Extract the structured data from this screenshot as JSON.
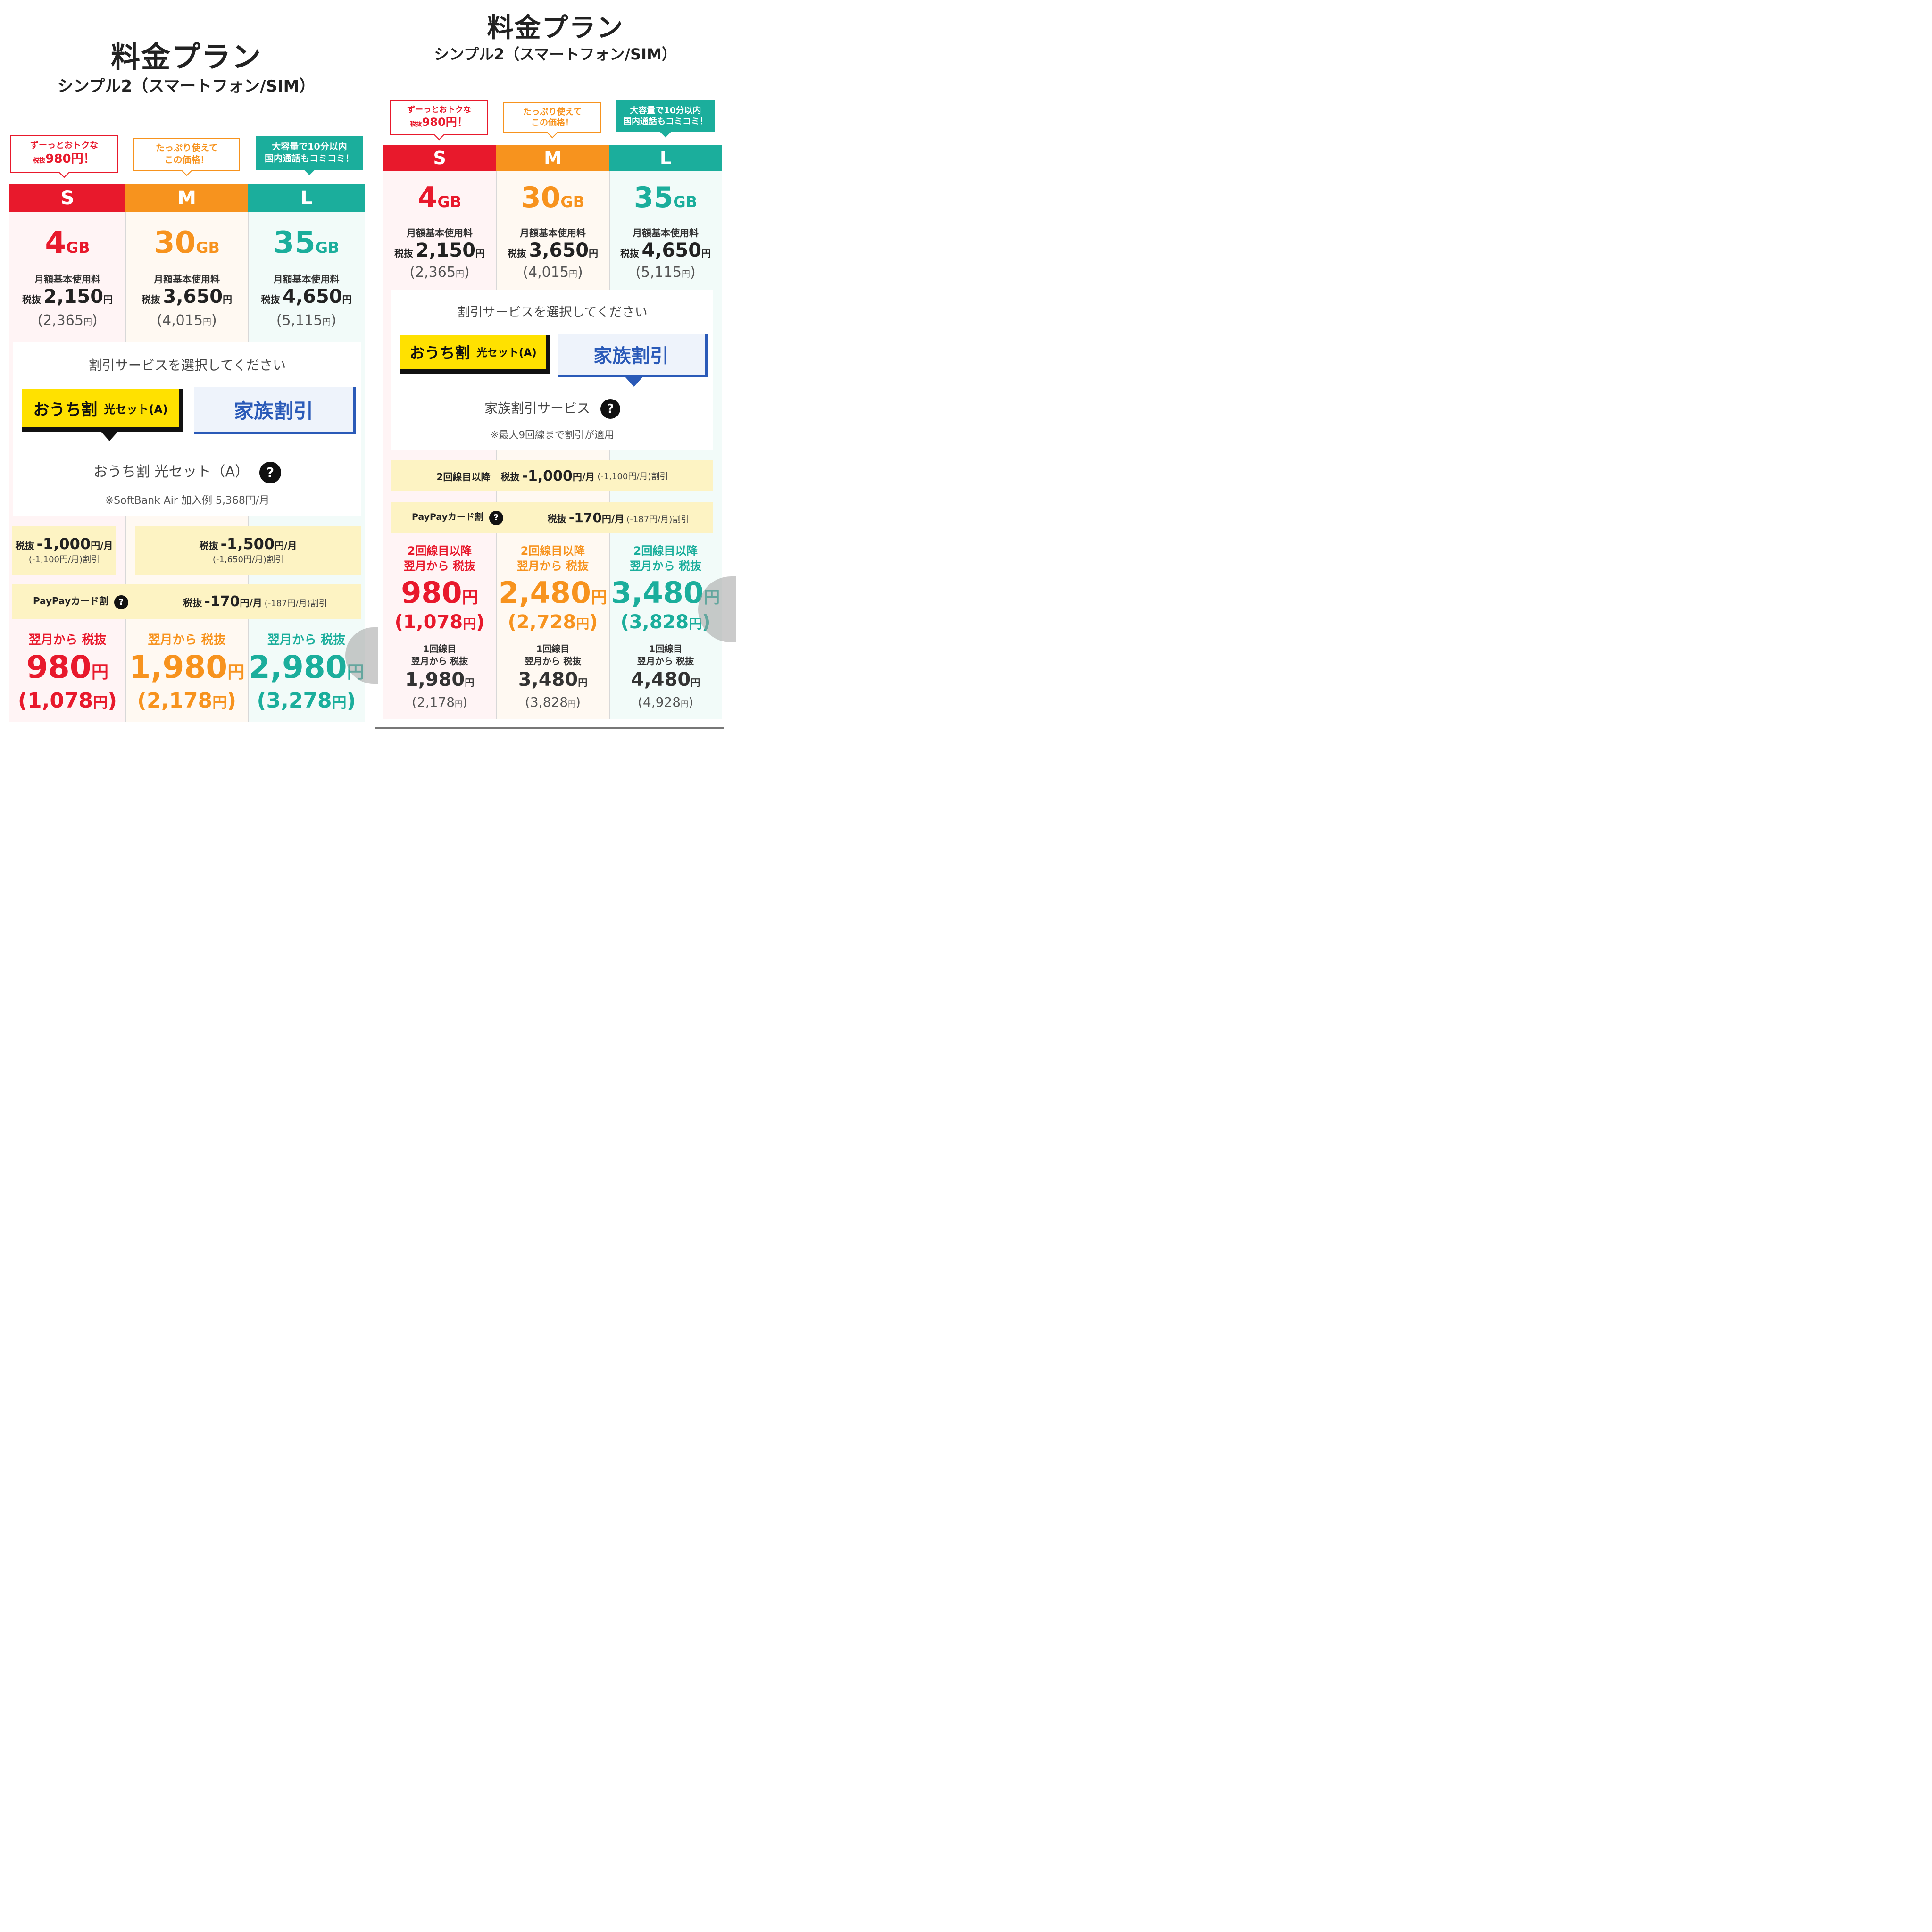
{
  "left": {
    "title": "料金プラン",
    "subtitle": "シンプル2（スマートフォン/SIM）",
    "bubbles": {
      "s": {
        "line1": "ずーっとおトクな",
        "prefix": "税抜",
        "line2": "980円！"
      },
      "m": {
        "line1": "たっぷり使えて",
        "line2": "この価格！"
      },
      "l": {
        "line1": "大容量で10分以内",
        "line2": "国内通話もコミコミ！"
      }
    },
    "plans": [
      {
        "name": "S",
        "gb": "4",
        "gb_unit": "GB",
        "fee_label": "月額基本使用料",
        "tax": "税抜",
        "fee": "2,150",
        "yen": "円",
        "fee_inc": "(2,365",
        "fee_inc_yen": "円",
        "fee_inc_close": ")"
      },
      {
        "name": "M",
        "gb": "30",
        "gb_unit": "GB",
        "fee_label": "月額基本使用料",
        "tax": "税抜",
        "fee": "3,650",
        "yen": "円",
        "fee_inc": "(4,015",
        "fee_inc_yen": "円",
        "fee_inc_close": ")"
      },
      {
        "name": "L",
        "gb": "35",
        "gb_unit": "GB",
        "fee_label": "月額基本使用料",
        "tax": "税抜",
        "fee": "4,650",
        "yen": "円",
        "fee_inc": "(5,115",
        "fee_inc_yen": "円",
        "fee_inc_close": ")"
      }
    ],
    "select_prompt": "割引サービスを選択してください",
    "btn_ouchi": "おうち割",
    "btn_ouchi_small": "光セット(A)",
    "btn_family": "家族割引",
    "service_name": "おうち割 光セット（A）",
    "service_q": "?",
    "service_note": "※SoftBank Air 加入例 5,368円/月",
    "discount_s": {
      "tax": "税抜",
      "amt": "-1,000",
      "unit": "円/月",
      "sub": "(-1,100円/月)割引"
    },
    "discount_ml": {
      "tax": "税抜",
      "amt": "-1,500",
      "unit": "円/月",
      "sub": "(-1,650円/月)割引"
    },
    "paypay": {
      "label": "PayPayカード割",
      "q": "?",
      "tax": "税抜",
      "amt": "-170",
      "unit": "円/月",
      "sub": "(-187円/月)割引"
    },
    "finals": [
      {
        "label": "翌月から 税抜",
        "price": "980",
        "yen": "円",
        "inc": "(1,078",
        "inc_yen": "円",
        "inc_close": ")"
      },
      {
        "label": "翌月から 税抜",
        "price": "1,980",
        "yen": "円",
        "inc": "(2,178",
        "inc_yen": "円",
        "inc_close": ")"
      },
      {
        "label": "翌月から 税抜",
        "price": "2,980",
        "yen": "円",
        "inc": "(3,278",
        "inc_yen": "円",
        "inc_close": ")"
      }
    ]
  },
  "right": {
    "title": "料金プラン",
    "subtitle": "シンプル2（スマートフォン/SIM）",
    "bubbles": {
      "s": {
        "line1": "ずーっとおトクな",
        "prefix": "税抜",
        "line2": "980円！"
      },
      "m": {
        "line1": "たっぷり使えて",
        "line2": "この価格！"
      },
      "l": {
        "line1": "大容量で10分以内",
        "line2": "国内通話もコミコミ！"
      }
    },
    "plans": [
      {
        "name": "S",
        "gb": "4",
        "gb_unit": "GB",
        "fee_label": "月額基本使用料",
        "tax": "税抜",
        "fee": "2,150",
        "yen": "円",
        "fee_inc": "(2,365",
        "fee_inc_yen": "円",
        "fee_inc_close": ")"
      },
      {
        "name": "M",
        "gb": "30",
        "gb_unit": "GB",
        "fee_label": "月額基本使用料",
        "tax": "税抜",
        "fee": "3,650",
        "yen": "円",
        "fee_inc": "(4,015",
        "fee_inc_yen": "円",
        "fee_inc_close": ")"
      },
      {
        "name": "L",
        "gb": "35",
        "gb_unit": "GB",
        "fee_label": "月額基本使用料",
        "tax": "税抜",
        "fee": "4,650",
        "yen": "円",
        "fee_inc": "(5,115",
        "fee_inc_yen": "円",
        "fee_inc_close": ")"
      }
    ],
    "select_prompt": "割引サービスを選択してください",
    "btn_ouchi": "おうち割",
    "btn_ouchi_small": "光セット(A)",
    "btn_family": "家族割引",
    "service_name": "家族割引サービス",
    "service_q": "?",
    "service_note": "※最大9回線まで割引が適用",
    "discount_all": {
      "prefix": "2回線目以降",
      "tax": "税抜",
      "amt": "-1,000",
      "unit": "円/月",
      "sub": "(-1,100円/月)割引"
    },
    "paypay": {
      "label": "PayPayカード割",
      "q": "?",
      "tax": "税抜",
      "amt": "-170",
      "unit": "円/月",
      "sub": "(-187円/月)割引"
    },
    "finals": [
      {
        "label1": "2回線目以降",
        "label2": "翌月から 税抜",
        "price": "980",
        "yen": "円",
        "inc": "(1,078",
        "inc_yen": "円",
        "inc_close": ")",
        "first_l1": "1回線目",
        "first_l2": "翌月から 税抜",
        "first_price": "1,980",
        "first_yen": "円",
        "first_inc": "(2,178",
        "first_inc_yen": "円",
        "first_inc_close": ")"
      },
      {
        "label1": "2回線目以降",
        "label2": "翌月から 税抜",
        "price": "2,480",
        "yen": "円",
        "inc": "(2,728",
        "inc_yen": "円",
        "inc_close": ")",
        "first_l1": "1回線目",
        "first_l2": "翌月から 税抜",
        "first_price": "3,480",
        "first_yen": "円",
        "first_inc": "(3,828",
        "first_inc_yen": "円",
        "first_inc_close": ")"
      },
      {
        "label1": "2回線目以降",
        "label2": "翌月から 税抜",
        "price": "3,480",
        "yen": "円",
        "inc": "(3,828",
        "inc_yen": "円",
        "inc_close": ")",
        "first_l1": "1回線目",
        "first_l2": "翌月から 税抜",
        "first_price": "4,480",
        "first_yen": "円",
        "first_inc": "(4,928",
        "first_inc_yen": "円",
        "first_inc_close": ")"
      }
    ]
  },
  "colors": {
    "s": "#e8192c",
    "m": "#f7931e",
    "l": "#1bae9c",
    "family_blue": "#2a5ab8",
    "ouchi_yellow": "#ffe100",
    "discount_bg": "#fdf3c3"
  }
}
